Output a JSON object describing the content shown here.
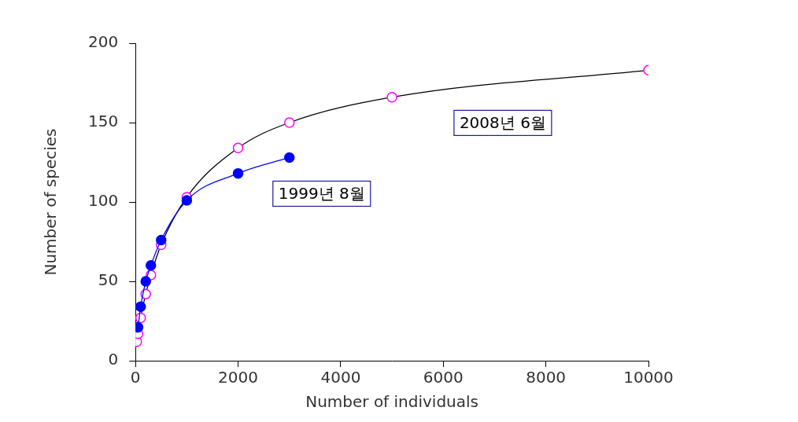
{
  "chart_data": {
    "type": "line",
    "x_label": "Number of individuals",
    "y_label": "Number of species",
    "series": [
      {
        "name": "1999년 8월",
        "color": "#0000ff",
        "marker": "circle",
        "x": [
          50,
          100,
          200,
          300,
          500,
          1000,
          2000,
          3000
        ],
        "values": [
          21,
          34,
          50,
          60,
          76,
          101,
          118,
          128
        ]
      },
      {
        "name": "2008년 6월",
        "color": "#ff00ff",
        "marker": "open_circle",
        "x": [
          25,
          50,
          100,
          200,
          300,
          500,
          1000,
          2000,
          3000,
          5000,
          10000
        ],
        "values": [
          12,
          17,
          27,
          42,
          54,
          73,
          103,
          134,
          150,
          166,
          183
        ]
      }
    ],
    "xlim": [
      0,
      10000
    ],
    "xticks": [
      0,
      2000,
      4000,
      6000,
      8000,
      10000
    ],
    "ylim": [
      0,
      200
    ],
    "yticks": [
      0,
      50,
      100,
      150,
      200
    ],
    "grid": false
  }
}
